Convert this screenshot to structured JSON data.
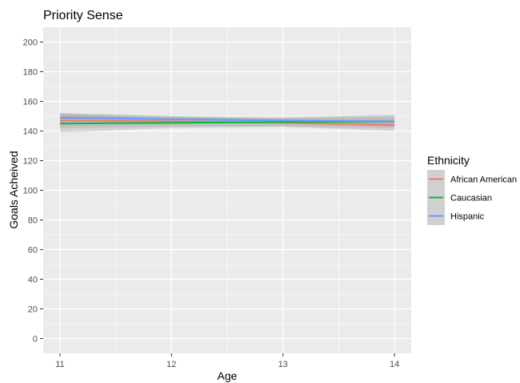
{
  "chart_data": {
    "type": "line",
    "title": "Priority Sense",
    "xlabel": "Age",
    "ylabel": "Goals Acheived",
    "xlim": [
      10.85,
      14.15
    ],
    "ylim": [
      -10,
      210
    ],
    "x_ticks": [
      11,
      12,
      13,
      14
    ],
    "y_ticks": [
      0,
      20,
      40,
      60,
      80,
      100,
      120,
      140,
      160,
      180,
      200
    ],
    "x": [
      11,
      12,
      13,
      14
    ],
    "grid": true,
    "legend": {
      "title": "Ethnicity",
      "position": "right"
    },
    "series": [
      {
        "name": "African American",
        "color": "#F8766D",
        "values": [
          147,
          146.5,
          145.5,
          144
        ],
        "ci_low": [
          142,
          143,
          143,
          140
        ],
        "ci_high": [
          152,
          150,
          148,
          148
        ]
      },
      {
        "name": "Caucasian",
        "color": "#00BA38",
        "values": [
          145,
          145.5,
          146,
          146.5
        ],
        "ci_low": [
          139,
          142,
          143,
          142
        ],
        "ci_high": [
          151,
          149,
          149,
          151
        ]
      },
      {
        "name": "Hispanic",
        "color": "#619CFF",
        "values": [
          149,
          148,
          147,
          146.5
        ],
        "ci_low": [
          146,
          146,
          145,
          143
        ],
        "ci_high": [
          152,
          150,
          149,
          150
        ]
      }
    ]
  }
}
